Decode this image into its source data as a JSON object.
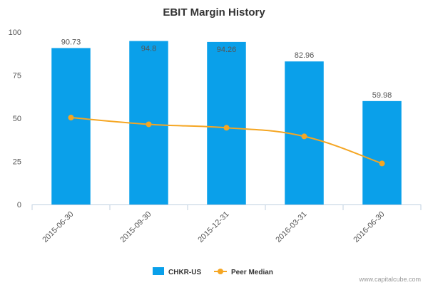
{
  "chart_data": {
    "type": "bar",
    "title": "EBIT Margin History",
    "categories": [
      "2015-06-30",
      "2015-09-30",
      "2015-12-31",
      "2016-03-31",
      "2016-06-30"
    ],
    "series": [
      {
        "name": "CHKR-US",
        "type": "bar",
        "color": "#0aa0ea",
        "values": [
          90.73,
          94.8,
          94.26,
          82.96,
          59.98
        ],
        "labels": [
          "90.73",
          "94.8",
          "94.26",
          "82.96",
          "59.98"
        ]
      },
      {
        "name": "Peer Median",
        "type": "line",
        "color": "#f5a623",
        "values": [
          50.4,
          46.5,
          44.5,
          39.5,
          23.8
        ]
      }
    ],
    "yticks": [
      "0",
      "25",
      "50",
      "75",
      "100"
    ],
    "ylim": [
      0,
      100
    ],
    "grid": false,
    "legend": "bottom-center"
  },
  "credit": "www.capitalcube.com"
}
